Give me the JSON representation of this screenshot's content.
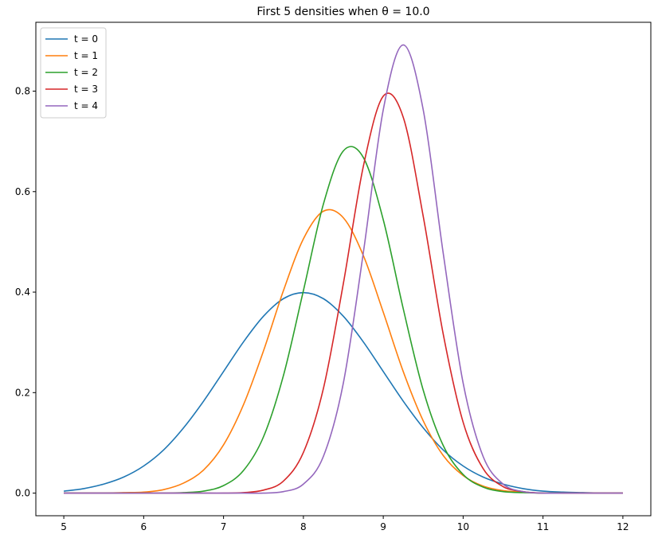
{
  "chart_data": {
    "type": "line",
    "title": "First 5 densities when θ = 10.0",
    "x": [
      5,
      5.25,
      5.5,
      5.75,
      6,
      6.25,
      6.5,
      6.75,
      7,
      7.25,
      7.5,
      7.75,
      8,
      8.25,
      8.5,
      8.75,
      9,
      9.25,
      9.5,
      9.75,
      10,
      10.25,
      10.5,
      10.75,
      11,
      11.25,
      11.5,
      11.75,
      12
    ],
    "series": [
      {
        "name": "t = 0",
        "color": "#1f77b4",
        "values": [
          0.004,
          0.009,
          0.018,
          0.032,
          0.054,
          0.086,
          0.13,
          0.183,
          0.242,
          0.301,
          0.352,
          0.387,
          0.399,
          0.387,
          0.352,
          0.301,
          0.242,
          0.183,
          0.13,
          0.086,
          0.054,
          0.032,
          0.018,
          0.009,
          0.004,
          0.002,
          0.001,
          0.0,
          0.0
        ]
      },
      {
        "name": "t = 1",
        "color": "#ff7f0e",
        "values": [
          0.0,
          0.0,
          0.0,
          0.001,
          0.002,
          0.007,
          0.02,
          0.046,
          0.096,
          0.176,
          0.283,
          0.403,
          0.506,
          0.561,
          0.548,
          0.473,
          0.36,
          0.242,
          0.144,
          0.075,
          0.035,
          0.014,
          0.005,
          0.002,
          0.0,
          0.0,
          0.0,
          0.0,
          0.0
        ]
      },
      {
        "name": "t = 2",
        "color": "#2ca02c",
        "values": [
          0.0,
          0.0,
          0.0,
          0.0,
          0.0,
          0.0,
          0.001,
          0.004,
          0.015,
          0.045,
          0.112,
          0.234,
          0.403,
          0.575,
          0.681,
          0.668,
          0.544,
          0.367,
          0.205,
          0.095,
          0.037,
          0.012,
          0.003,
          0.001,
          0.0,
          0.0,
          0.0,
          0.0,
          0.0
        ]
      },
      {
        "name": "t = 3",
        "color": "#d62728",
        "values": [
          0.0,
          0.0,
          0.0,
          0.0,
          0.0,
          0.0,
          0.0,
          0.0,
          0.0,
          0.001,
          0.006,
          0.024,
          0.081,
          0.208,
          0.417,
          0.65,
          0.79,
          0.748,
          0.551,
          0.317,
          0.141,
          0.049,
          0.013,
          0.003,
          0.0,
          0.0,
          0.0,
          0.0,
          0.0
        ]
      },
      {
        "name": "t = 4",
        "color": "#9467bd",
        "values": [
          0.0,
          0.0,
          0.0,
          0.0,
          0.0,
          0.0,
          0.0,
          0.0,
          0.0,
          0.0,
          0.0,
          0.003,
          0.018,
          0.073,
          0.219,
          0.478,
          0.763,
          0.892,
          0.763,
          0.478,
          0.219,
          0.073,
          0.018,
          0.003,
          0.0,
          0.0,
          0.0,
          0.0,
          0.0
        ]
      }
    ],
    "xlim": [
      4.65,
      12.35
    ],
    "xticks": [
      5,
      6,
      7,
      8,
      9,
      10,
      11,
      12
    ],
    "ylim": [
      -0.045,
      0.937
    ],
    "yticks": [
      {
        "value": 0,
        "label": "0.0"
      },
      0.2,
      0.4,
      0.6,
      0.8
    ],
    "legend": "upper left"
  }
}
